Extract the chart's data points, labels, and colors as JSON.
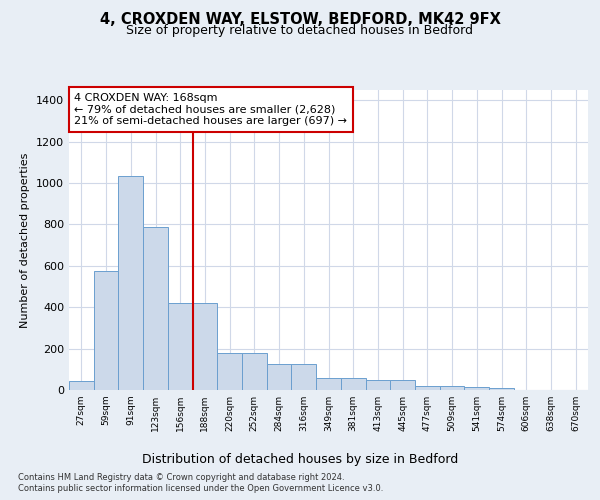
{
  "title_line1": "4, CROXDEN WAY, ELSTOW, BEDFORD, MK42 9FX",
  "title_line2": "Size of property relative to detached houses in Bedford",
  "xlabel": "Distribution of detached houses by size in Bedford",
  "ylabel": "Number of detached properties",
  "categories": [
    "27sqm",
    "59sqm",
    "91sqm",
    "123sqm",
    "156sqm",
    "188sqm",
    "220sqm",
    "252sqm",
    "284sqm",
    "316sqm",
    "349sqm",
    "381sqm",
    "413sqm",
    "445sqm",
    "477sqm",
    "509sqm",
    "541sqm",
    "574sqm",
    "606sqm",
    "638sqm",
    "670sqm"
  ],
  "values": [
    45,
    575,
    1035,
    790,
    420,
    420,
    180,
    180,
    125,
    125,
    60,
    60,
    47,
    47,
    20,
    20,
    15,
    10,
    0,
    0,
    0
  ],
  "bar_color": "#ccd9ea",
  "bar_edge_color": "#6b9fcf",
  "vline_color": "#cc0000",
  "vline_index": 4.5,
  "annotation_text": "4 CROXDEN WAY: 168sqm\n← 79% of detached houses are smaller (2,628)\n21% of semi-detached houses are larger (697) →",
  "annotation_box_color": "#ffffff",
  "annotation_box_edge": "#cc0000",
  "fig_bg_color": "#e8eef5",
  "plot_bg_color": "#ffffff",
  "grid_color": "#d0d8e8",
  "footer_line1": "Contains HM Land Registry data © Crown copyright and database right 2024.",
  "footer_line2": "Contains public sector information licensed under the Open Government Licence v3.0.",
  "ylim": [
    0,
    1450
  ],
  "yticks": [
    0,
    200,
    400,
    600,
    800,
    1000,
    1200,
    1400
  ]
}
